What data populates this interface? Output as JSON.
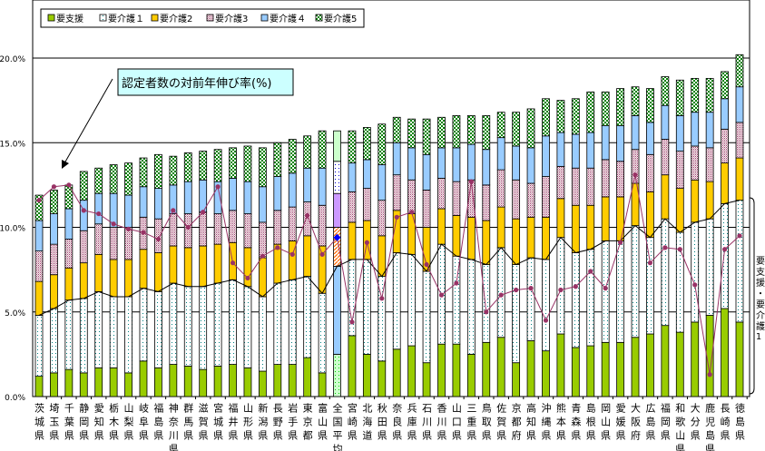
{
  "chart_data": {
    "type": "bar",
    "stacked": true,
    "title": "",
    "xlabel": "",
    "ylabel": "",
    "ylim": [
      0,
      20
    ],
    "yticks": [
      "0.0%",
      "5.0%",
      "10.0%",
      "15.0%",
      "20.0%"
    ],
    "ytick_values": [
      0,
      5,
      10,
      15,
      20
    ],
    "grid": true,
    "legend_position": "top-left",
    "categories": [
      "茨城県",
      "埼玉県",
      "千葉県",
      "静岡県",
      "愛知県",
      "栃木県",
      "山梨県",
      "岐阜県",
      "福島県",
      "神奈川県",
      "群馬県",
      "滋賀県",
      "宮城県",
      "福井県",
      "山形県",
      "新潟県",
      "長野県",
      "岩手県",
      "東京都",
      "富山県",
      "全国平均",
      "宮崎県",
      "北海道",
      "秋田県",
      "奈良県",
      "兵庫県",
      "石川県",
      "香川県",
      "山口県",
      "三重県",
      "鳥取県",
      "佐賀県",
      "京都府",
      "高知県",
      "沖縄県",
      "熊本県",
      "青森県",
      "島根県",
      "岡山県",
      "愛媛県",
      "大阪府",
      "広島県",
      "福岡県",
      "和歌山県",
      "大分県",
      "鹿児島県",
      "長崎県",
      "徳島県"
    ],
    "highlight_category": "全国平均",
    "series": [
      {
        "name": "要支援",
        "color": "#99cc00",
        "values": [
          1.2,
          1.4,
          1.6,
          1.4,
          1.7,
          1.7,
          1.4,
          2.1,
          1.7,
          1.9,
          1.8,
          1.6,
          1.8,
          1.9,
          1.7,
          1.5,
          1.9,
          1.9,
          2.3,
          1.4,
          2.5,
          3.6,
          2.5,
          2.1,
          2.8,
          3.0,
          2.0,
          3.1,
          3.1,
          2.5,
          3.2,
          3.5,
          2.0,
          3.3,
          2.7,
          3.7,
          2.9,
          3.0,
          3.2,
          3.2,
          3.5,
          3.7,
          4.2,
          3.8,
          4.4,
          4.8,
          5.2,
          4.4
        ]
      },
      {
        "name": "要介護１",
        "color": "#008080",
        "values": [
          3.6,
          3.8,
          4.1,
          4.4,
          4.5,
          4.2,
          4.5,
          4.3,
          4.5,
          4.8,
          4.7,
          4.9,
          4.9,
          5.0,
          4.8,
          4.4,
          4.8,
          5.0,
          4.8,
          4.7,
          5.2,
          4.5,
          5.6,
          5.0,
          5.7,
          5.4,
          5.4,
          5.9,
          5.2,
          5.6,
          4.6,
          5.3,
          5.8,
          4.9,
          5.4,
          5.7,
          5.6,
          5.7,
          6.0,
          6.0,
          6.6,
          5.7,
          6.3,
          5.9,
          5.9,
          5.7,
          6.2,
          7.2
        ]
      },
      {
        "name": "要介護2",
        "color": "#ffcc00",
        "values": [
          2.0,
          2.0,
          1.9,
          2.1,
          2.2,
          2.2,
          2.2,
          2.3,
          2.3,
          2.2,
          2.3,
          2.4,
          2.3,
          2.2,
          2.3,
          2.3,
          2.3,
          2.3,
          2.4,
          2.8,
          2.3,
          2.2,
          2.3,
          2.4,
          2.5,
          2.4,
          2.6,
          2.1,
          2.4,
          2.5,
          2.6,
          2.4,
          2.7,
          2.4,
          2.5,
          2.3,
          2.8,
          2.6,
          2.6,
          2.6,
          2.5,
          2.7,
          2.6,
          2.6,
          2.5,
          2.2,
          2.4,
          2.5
        ]
      },
      {
        "name": "要介護3",
        "color": "#993366",
        "values": [
          1.8,
          1.8,
          1.7,
          1.9,
          1.8,
          1.9,
          1.9,
          1.9,
          2.0,
          1.9,
          2.0,
          2.0,
          1.8,
          1.9,
          2.0,
          2.1,
          2.0,
          2.0,
          2.0,
          2.4,
          2.0,
          1.8,
          1.9,
          2.1,
          2.1,
          2.0,
          2.2,
          1.8,
          2.0,
          2.2,
          2.1,
          2.2,
          2.3,
          2.0,
          2.4,
          1.9,
          2.2,
          2.2,
          2.2,
          2.1,
          2.0,
          2.2,
          2.1,
          2.2,
          2.0,
          2.0,
          2.0,
          2.1
        ]
      },
      {
        "name": "要介護４",
        "color": "#99ccff",
        "values": [
          1.8,
          1.8,
          1.8,
          1.8,
          1.8,
          2.0,
          1.9,
          1.8,
          1.8,
          1.7,
          1.9,
          1.9,
          1.9,
          1.9,
          1.9,
          2.1,
          2.0,
          2.0,
          2.0,
          2.2,
          1.9,
          1.7,
          1.7,
          2.1,
          1.9,
          1.9,
          2.1,
          1.8,
          2.0,
          2.1,
          2.1,
          1.9,
          2.0,
          2.1,
          2.4,
          2.0,
          2.0,
          2.1,
          2.0,
          2.1,
          2.0,
          1.9,
          2.0,
          2.1,
          2.0,
          2.1,
          1.8,
          2.1
        ]
      },
      {
        "name": "要介護5",
        "color": "#008000",
        "values": [
          1.5,
          1.4,
          1.4,
          1.7,
          1.5,
          1.7,
          1.9,
          1.7,
          2.0,
          1.7,
          1.7,
          1.7,
          1.9,
          1.8,
          2.1,
          2.3,
          2.0,
          2.0,
          1.9,
          2.2,
          1.8,
          1.9,
          1.9,
          2.4,
          1.5,
          1.7,
          2.1,
          1.8,
          1.9,
          1.7,
          2.0,
          1.5,
          2.0,
          2.3,
          2.2,
          1.9,
          2.1,
          2.4,
          2.0,
          2.2,
          1.7,
          2.0,
          1.7,
          2.1,
          2.0,
          2.0,
          1.6,
          1.9
        ]
      }
    ],
    "line_series": [
      {
        "name": "認定者数の対前年伸び率(%)",
        "color": "#993366",
        "values": [
          11.6,
          12.4,
          12.5,
          11.0,
          10.8,
          10.2,
          9.9,
          9.7,
          9.3,
          11.0,
          10.0,
          10.9,
          12.4,
          7.9,
          7.0,
          8.3,
          8.8,
          8.4,
          10.7,
          8.4,
          9.4,
          4.4,
          9.1,
          5.8,
          10.6,
          10.9,
          7.8,
          6.0,
          6.7,
          12.7,
          5.0,
          6.0,
          6.3,
          6.4,
          4.5,
          6.3,
          6.5,
          7.4,
          6.4,
          9.1,
          13.1,
          7.9,
          8.8,
          8.7,
          6.6,
          1.3,
          8.7,
          9.5
        ]
      }
    ],
    "annotations": {
      "callout": "認定者数の対前年伸び率(%)",
      "bracket_label": "要支援・要介護1"
    }
  }
}
